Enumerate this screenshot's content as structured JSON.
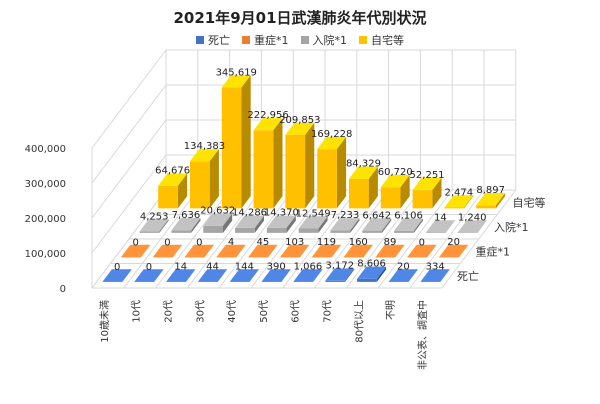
{
  "chart_data": {
    "type": "bar",
    "title": "2021年9月01日武漢肺炎年代別状況",
    "categories": [
      "10歳未満",
      "10代",
      "20代",
      "30代",
      "40代",
      "50代",
      "60代",
      "70代",
      "80代以上",
      "不明",
      "非公表、調査中"
    ],
    "series": [
      {
        "name": "死亡",
        "color": "#4472C4",
        "values": [
          0,
          0,
          14,
          44,
          144,
          390,
          1066,
          3172,
          8606,
          20,
          334
        ],
        "labels": [
          "0",
          "0",
          "14",
          "44",
          "144",
          "390",
          "1,066",
          "3,172",
          "8,606",
          "20",
          "334"
        ]
      },
      {
        "name": "重症*1",
        "color": "#ED7D31",
        "values": [
          0,
          0,
          0,
          4,
          45,
          103,
          119,
          160,
          89,
          0,
          20
        ],
        "labels": [
          "0",
          "0",
          "0",
          "4",
          "45",
          "103",
          "119",
          "160",
          "89",
          "0",
          "20"
        ]
      },
      {
        "name": "入院*1",
        "color": "#A5A5A5",
        "values": [
          4253,
          7636,
          20632,
          14286,
          14370,
          12549,
          7233,
          6642,
          6106,
          14,
          1240
        ],
        "labels": [
          "4,253",
          "7,636",
          "20,632",
          "14,286",
          "14,370",
          "12,549",
          "7,233",
          "6,642",
          "6,106",
          "14",
          "1,240"
        ]
      },
      {
        "name": "自宅等",
        "color": "#FFC000",
        "values": [
          64676,
          134383,
          345619,
          222956,
          209853,
          169228,
          84329,
          60720,
          52251,
          2474,
          8897
        ],
        "labels": [
          "64,676",
          "134,383",
          "345,619",
          "222,956",
          "209,853",
          "169,228",
          "84,329",
          "60,720",
          "52,251",
          "2,474",
          "8,897"
        ]
      }
    ],
    "series_axis_labels": [
      "死亡",
      "重症*1",
      "入院*1",
      "自宅等"
    ],
    "y_ticks": [
      "0",
      "100,000",
      "200,000",
      "300,000",
      "400,000"
    ],
    "ylim": [
      0,
      400000
    ],
    "xlabel": "",
    "ylabel": "",
    "grid": true,
    "legend_position": "top"
  }
}
